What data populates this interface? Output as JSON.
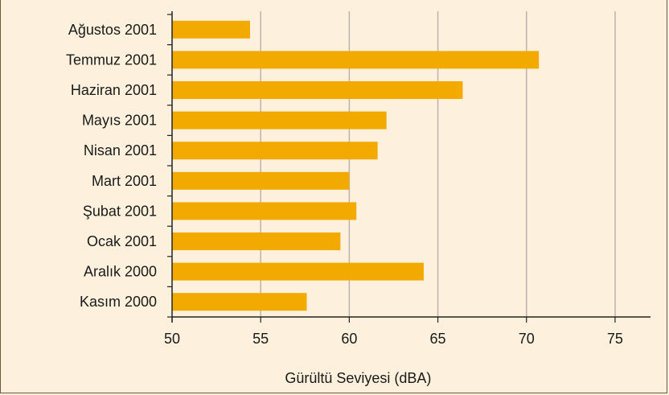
{
  "colors": {
    "bar": "#f2aa00",
    "background": "#fdf0dc",
    "grid": "#b9b4ad",
    "axis": "#222222"
  },
  "chart_data": {
    "type": "bar",
    "orientation": "horizontal",
    "categories": [
      "Ağustos 2001",
      "Temmuz 2001",
      "Haziran 2001",
      "Mayıs 2001",
      "Nisan 2001",
      "Mart 2001",
      "Şubat 2001",
      "Ocak 2001",
      "Aralık 2000",
      "Kasım 2000"
    ],
    "values": [
      54.4,
      70.7,
      66.4,
      62.1,
      61.6,
      60.0,
      60.4,
      59.5,
      64.2,
      57.6
    ],
    "xlabel": "Gürültü Seviyesi (dBA)",
    "xlim": [
      50,
      77
    ],
    "xticks": [
      50,
      55,
      60,
      65,
      70,
      75
    ],
    "grid": true
  }
}
